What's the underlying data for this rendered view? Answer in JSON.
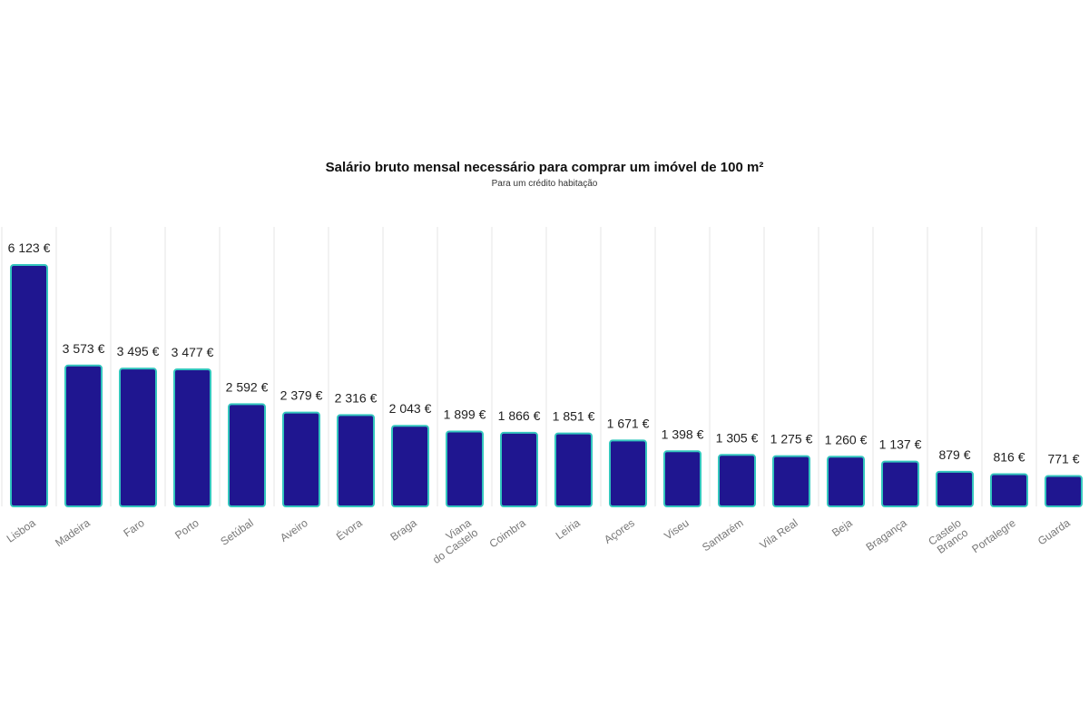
{
  "chart_data": {
    "type": "bar",
    "title": "Salário bruto mensal necessário para comprar um imóvel de 100 m²",
    "subtitle": "Para um crédito habitação",
    "xlabel": "",
    "ylabel": "",
    "ylim": [
      0,
      6300
    ],
    "grid": "vertical",
    "value_suffix": " €",
    "colors": {
      "bar_fill": "#1f1690",
      "bar_stroke": "#34c6be",
      "grid": "#e4e4e4"
    },
    "categories": [
      "Lisboa",
      "Madeira",
      "Faro",
      "Porto",
      "Setúbal",
      "Aveiro",
      "Évora",
      "Braga",
      "Viana do Castelo",
      "Coimbra",
      "Leiria",
      "Açores",
      "Viseu",
      "Santarém",
      "Vila Real",
      "Beja",
      "Bragança",
      "Castelo Branco",
      "Portalegre",
      "Guarda"
    ],
    "values": [
      6123,
      3573,
      3495,
      3477,
      2592,
      2379,
      2316,
      2043,
      1899,
      1866,
      1851,
      1671,
      1398,
      1305,
      1275,
      1260,
      1137,
      879,
      816,
      771
    ],
    "value_labels": [
      "6 123 €",
      "3 573 €",
      "3 495 €",
      "3 477 €",
      "2 592 €",
      "2 379 €",
      "2 316 €",
      "2 043 €",
      "1 899 €",
      "1 866 €",
      "1 851 €",
      "1 671 €",
      "1 398 €",
      "1 305 €",
      "1 275 €",
      "1 260 €",
      "1 137 €",
      "879 €",
      "816 €",
      "771 €"
    ],
    "tick_labels": [
      [
        "Lisboa"
      ],
      [
        "Madeira"
      ],
      [
        "Faro"
      ],
      [
        "Porto"
      ],
      [
        "Setúbal"
      ],
      [
        "Aveiro"
      ],
      [
        "Évora"
      ],
      [
        "Braga"
      ],
      [
        "Viana",
        "do Castelo"
      ],
      [
        "Coimbra"
      ],
      [
        "Leiria"
      ],
      [
        "Açores"
      ],
      [
        "Viseu"
      ],
      [
        "Santarém"
      ],
      [
        "Vila Real"
      ],
      [
        "Beja"
      ],
      [
        "Bragança"
      ],
      [
        "Castelo",
        "Branco"
      ],
      [
        "Portalegre"
      ],
      [
        "Guarda"
      ]
    ]
  }
}
